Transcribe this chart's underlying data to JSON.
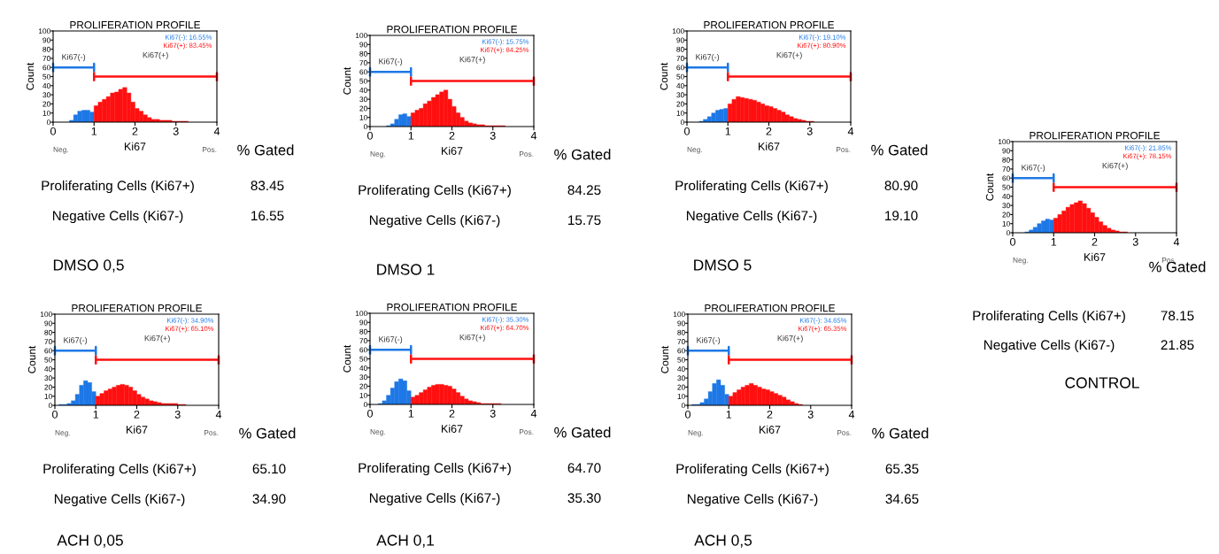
{
  "chart_data": [
    {
      "type": "histogram",
      "title": "PROLIFERATION PROFILE",
      "subtitle": "DMSO 0,5",
      "xlabel": "Ki67",
      "ylabel": "Count",
      "xlim": [
        0,
        4
      ],
      "ylim": [
        0,
        100
      ],
      "xticks": [
        0,
        1,
        2,
        3,
        4
      ],
      "yticks": [
        0,
        10,
        20,
        30,
        40,
        50,
        60,
        70,
        80,
        90,
        100
      ],
      "legend": "top right",
      "bins": [
        0,
        0.1,
        0.2,
        0.3,
        0.4,
        0.5,
        0.6,
        0.7,
        0.8,
        0.9,
        1.0,
        1.1,
        1.2,
        1.3,
        1.4,
        1.5,
        1.6,
        1.7,
        1.8,
        1.9,
        2.0,
        2.1,
        2.2,
        2.3,
        2.4,
        2.5,
        2.6,
        2.7,
        2.8,
        2.9,
        3.0,
        3.1,
        3.2,
        3.3,
        3.4,
        3.5
      ],
      "series": [
        {
          "name": "Ki67(-): 16.55%",
          "color": "#1e78e6",
          "values": [
            null,
            null,
            null,
            null,
            2,
            8,
            12,
            13,
            13,
            11,
            null,
            null,
            null,
            null,
            null,
            null,
            null,
            null,
            null,
            null,
            null,
            null,
            null,
            null,
            null,
            null,
            null,
            null,
            null,
            null,
            null,
            null,
            null,
            null,
            null
          ]
        },
        {
          "name": "Ki67(+): 83.45%",
          "color": "#ff1010",
          "values": [
            null,
            null,
            null,
            null,
            null,
            null,
            null,
            null,
            null,
            null,
            18,
            22,
            25,
            28,
            32,
            33,
            36,
            38,
            32,
            22,
            15,
            12,
            8,
            5,
            3,
            3,
            2,
            2,
            2,
            1,
            1,
            1,
            1,
            null,
            null
          ]
        },
        {
          "type": "line",
          "color": "#1e78e6",
          "x": [
            0,
            0,
            0,
            1,
            1,
            1
          ],
          "values": [
            56,
            64,
            60,
            60,
            64,
            56
          ]
        },
        {
          "type": "line",
          "color": "#ff1010",
          "x": [
            1,
            1,
            1,
            4,
            4,
            4
          ],
          "values": [
            46,
            54,
            50,
            50,
            54,
            46
          ]
        }
      ],
      "annotations": [
        "Ki67(-)",
        "Ki67(+)",
        "Neg.",
        "Pos.",
        "% Gated",
        "Proliferating Cells (Ki67+)",
        "83.45",
        "Negative Cells (Ki67-)",
        "16.55"
      ]
    },
    {
      "type": "histogram",
      "title": "PROLIFERATION PROFILE",
      "subtitle": "DMSO 1",
      "xlabel": "Ki67",
      "ylabel": "Count",
      "xlim": [
        0,
        4
      ],
      "ylim": [
        0,
        100
      ],
      "xticks": [
        0,
        1,
        2,
        3,
        4
      ],
      "yticks": [
        0,
        10,
        20,
        30,
        40,
        50,
        60,
        70,
        80,
        90,
        100
      ],
      "legend": "top right",
      "bins": [
        0,
        0.1,
        0.2,
        0.3,
        0.4,
        0.5,
        0.6,
        0.7,
        0.8,
        0.9,
        1.0,
        1.1,
        1.2,
        1.3,
        1.4,
        1.5,
        1.6,
        1.7,
        1.8,
        1.9,
        2.0,
        2.1,
        2.2,
        2.3,
        2.4,
        2.5,
        2.6,
        2.7,
        2.8,
        2.9,
        3.0,
        3.1,
        3.2,
        3.3,
        3.4,
        3.5
      ],
      "series": [
        {
          "name": "Ki67(-): 15.75%",
          "color": "#1e78e6",
          "values": [
            null,
            null,
            null,
            null,
            1,
            3,
            8,
            13,
            14,
            11,
            null,
            null,
            null,
            null,
            null,
            null,
            null,
            null,
            null,
            null,
            null,
            null,
            null,
            null,
            null,
            null,
            null,
            null,
            null,
            null,
            null,
            null,
            null,
            null,
            null
          ]
        },
        {
          "name": "Ki67(+): 84.25%",
          "color": "#ff1010",
          "values": [
            null,
            null,
            null,
            null,
            null,
            null,
            null,
            null,
            null,
            null,
            15,
            18,
            20,
            25,
            28,
            32,
            35,
            38,
            40,
            30,
            22,
            15,
            10,
            6,
            4,
            3,
            2,
            2,
            1,
            1,
            1,
            1,
            1,
            null,
            null
          ]
        },
        {
          "type": "line",
          "color": "#1e78e6",
          "x": [
            0,
            0,
            0,
            1,
            1,
            1
          ],
          "values": [
            56,
            64,
            60,
            60,
            64,
            56
          ]
        },
        {
          "type": "line",
          "color": "#ff1010",
          "x": [
            1,
            1,
            1,
            4,
            4,
            4
          ],
          "values": [
            46,
            54,
            50,
            50,
            54,
            46
          ]
        }
      ],
      "annotations": [
        "Ki67(-)",
        "Ki67(+)",
        "Neg.",
        "Pos.",
        "% Gated",
        "Proliferating Cells (Ki67+)",
        "84.25",
        "Negative Cells (Ki67-)",
        "15.75"
      ]
    },
    {
      "type": "histogram",
      "title": "PROLIFERATION PROFILE",
      "subtitle": "DMSO 5",
      "xlabel": "Ki67",
      "ylabel": "Count",
      "xlim": [
        0,
        4
      ],
      "ylim": [
        0,
        100
      ],
      "xticks": [
        0,
        1,
        2,
        3,
        4
      ],
      "yticks": [
        0,
        10,
        20,
        30,
        40,
        50,
        60,
        70,
        80,
        90,
        100
      ],
      "legend": "top right",
      "bins": [
        0,
        0.1,
        0.2,
        0.3,
        0.4,
        0.5,
        0.6,
        0.7,
        0.8,
        0.9,
        1.0,
        1.1,
        1.2,
        1.3,
        1.4,
        1.5,
        1.6,
        1.7,
        1.8,
        1.9,
        2.0,
        2.1,
        2.2,
        2.3,
        2.4,
        2.5,
        2.6,
        2.7,
        2.8,
        2.9,
        3.0,
        3.1,
        3.2,
        3.3,
        3.4,
        3.5
      ],
      "series": [
        {
          "name": "Ki67(-): 19.10%",
          "color": "#1e78e6",
          "values": [
            null,
            null,
            null,
            1,
            3,
            6,
            10,
            13,
            14,
            15,
            null,
            null,
            null,
            null,
            null,
            null,
            null,
            null,
            null,
            null,
            null,
            null,
            null,
            null,
            null,
            null,
            null,
            null,
            null,
            null,
            null,
            null,
            null,
            null,
            null
          ]
        },
        {
          "name": "Ki67(+): 80.90%",
          "color": "#ff1010",
          "values": [
            null,
            null,
            null,
            null,
            null,
            null,
            null,
            null,
            null,
            null,
            20,
            25,
            28,
            27,
            26,
            25,
            24,
            22,
            20,
            18,
            17,
            15,
            13,
            11,
            8,
            6,
            4,
            3,
            2,
            1,
            1,
            null,
            null,
            null,
            null
          ]
        },
        {
          "type": "line",
          "color": "#1e78e6",
          "x": [
            0,
            0,
            0,
            1,
            1,
            1
          ],
          "values": [
            56,
            64,
            60,
            60,
            64,
            56
          ]
        },
        {
          "type": "line",
          "color": "#ff1010",
          "x": [
            1,
            1,
            1,
            4,
            4,
            4
          ],
          "values": [
            46,
            54,
            50,
            50,
            54,
            46
          ]
        }
      ],
      "annotations": [
        "Ki67(-)",
        "Ki67(+)",
        "Neg.",
        "Pos.",
        "% Gated",
        "Proliferating Cells (Ki67+)",
        "80.90",
        "Negative Cells (Ki67-)",
        "19.10"
      ]
    },
    {
      "type": "histogram",
      "title": "PROLIFERATION PROFILE",
      "subtitle": "CONTROL",
      "xlabel": "Ki67",
      "ylabel": "Count",
      "xlim": [
        0,
        4
      ],
      "ylim": [
        0,
        100
      ],
      "xticks": [
        0,
        1,
        2,
        3,
        4
      ],
      "yticks": [
        0,
        10,
        20,
        30,
        40,
        50,
        60,
        70,
        80,
        90,
        100
      ],
      "legend": "top right",
      "bins": [
        0,
        0.1,
        0.2,
        0.3,
        0.4,
        0.5,
        0.6,
        0.7,
        0.8,
        0.9,
        1.0,
        1.1,
        1.2,
        1.3,
        1.4,
        1.5,
        1.6,
        1.7,
        1.8,
        1.9,
        2.0,
        2.1,
        2.2,
        2.3,
        2.4,
        2.5,
        2.6,
        2.7,
        2.8,
        2.9,
        3.0,
        3.1,
        3.2,
        3.3,
        3.4,
        3.5
      ],
      "series": [
        {
          "name": "Ki67(-): 21.85%",
          "color": "#1e78e6",
          "values": [
            null,
            null,
            null,
            1,
            3,
            6,
            10,
            13,
            15,
            14,
            null,
            null,
            null,
            null,
            null,
            null,
            null,
            null,
            null,
            null,
            null,
            null,
            null,
            null,
            null,
            null,
            null,
            null,
            null,
            null,
            null,
            null,
            null,
            null,
            null
          ]
        },
        {
          "name": "Ki67(+): 78.15%",
          "color": "#ff1010",
          "values": [
            null,
            null,
            null,
            null,
            null,
            null,
            null,
            null,
            null,
            null,
            16,
            20,
            24,
            28,
            31,
            33,
            35,
            32,
            27,
            22,
            17,
            12,
            8,
            5,
            3,
            2,
            1,
            1,
            null,
            null,
            null,
            null,
            null,
            null,
            null
          ]
        },
        {
          "type": "line",
          "color": "#1e78e6",
          "x": [
            0,
            0,
            0,
            1,
            1,
            1
          ],
          "values": [
            56,
            64,
            60,
            60,
            64,
            56
          ]
        },
        {
          "type": "line",
          "color": "#ff1010",
          "x": [
            1,
            1,
            1,
            4,
            4,
            4
          ],
          "values": [
            46,
            54,
            50,
            50,
            54,
            46
          ]
        }
      ],
      "annotations": [
        "Ki67(-)",
        "Ki67(+)",
        "Neg.",
        "Pos.",
        "% Gated",
        "Proliferating Cells (Ki67+)",
        "78.15",
        "Negative Cells (Ki67-)",
        "21.85"
      ]
    },
    {
      "type": "histogram",
      "title": "PROLIFERATION PROFILE",
      "subtitle": "ACH 0,05",
      "xlabel": "Ki67",
      "ylabel": "Count",
      "xlim": [
        0,
        4
      ],
      "ylim": [
        0,
        100
      ],
      "xticks": [
        0,
        1,
        2,
        3,
        4
      ],
      "yticks": [
        0,
        10,
        20,
        30,
        40,
        50,
        60,
        70,
        80,
        90,
        100
      ],
      "legend": "top right",
      "bins": [
        0,
        0.1,
        0.2,
        0.3,
        0.4,
        0.5,
        0.6,
        0.7,
        0.8,
        0.9,
        1.0,
        1.1,
        1.2,
        1.3,
        1.4,
        1.5,
        1.6,
        1.7,
        1.8,
        1.9,
        2.0,
        2.1,
        2.2,
        2.3,
        2.4,
        2.5,
        2.6,
        2.7,
        2.8,
        2.9,
        3.0,
        3.1,
        3.2,
        3.3,
        3.4,
        3.5
      ],
      "series": [
        {
          "name": "Ki67(-): 34.90%",
          "color": "#1e78e6",
          "values": [
            null,
            1,
            1,
            2,
            5,
            12,
            22,
            27,
            25,
            15,
            null,
            null,
            null,
            null,
            null,
            null,
            null,
            null,
            null,
            null,
            null,
            null,
            null,
            null,
            null,
            null,
            null,
            null,
            null,
            null,
            null,
            null,
            null,
            null,
            null
          ]
        },
        {
          "name": "Ki67(+): 65.10%",
          "color": "#ff1010",
          "values": [
            null,
            null,
            null,
            null,
            null,
            null,
            null,
            null,
            null,
            null,
            10,
            13,
            16,
            18,
            20,
            22,
            23,
            22,
            20,
            16,
            12,
            9,
            7,
            5,
            4,
            3,
            2,
            2,
            2,
            2,
            1,
            1,
            null,
            null,
            null
          ]
        },
        {
          "type": "line",
          "color": "#1e78e6",
          "x": [
            0,
            0,
            0,
            1,
            1,
            1
          ],
          "values": [
            56,
            64,
            60,
            60,
            64,
            56
          ]
        },
        {
          "type": "line",
          "color": "#ff1010",
          "x": [
            1,
            1,
            1,
            4,
            4,
            4
          ],
          "values": [
            46,
            54,
            50,
            50,
            54,
            46
          ]
        }
      ],
      "annotations": [
        "Ki67(-)",
        "Ki67(+)",
        "Neg.",
        "Pos.",
        "% Gated",
        "Proliferating Cells (Ki67+)",
        "65.10",
        "Negative Cells (Ki67-)",
        "34.90"
      ]
    },
    {
      "type": "histogram",
      "title": "PROLIFERATION PROFILE",
      "subtitle": "ACH 0,1",
      "xlabel": "Ki67",
      "ylabel": "Count",
      "xlim": [
        0,
        4
      ],
      "ylim": [
        0,
        100
      ],
      "xticks": [
        0,
        1,
        2,
        3,
        4
      ],
      "yticks": [
        0,
        10,
        20,
        30,
        40,
        50,
        60,
        70,
        80,
        90,
        100
      ],
      "legend": "top right",
      "bins": [
        0,
        0.1,
        0.2,
        0.3,
        0.4,
        0.5,
        0.6,
        0.7,
        0.8,
        0.9,
        1.0,
        1.1,
        1.2,
        1.3,
        1.4,
        1.5,
        1.6,
        1.7,
        1.8,
        1.9,
        2.0,
        2.1,
        2.2,
        2.3,
        2.4,
        2.5,
        2.6,
        2.7,
        2.8,
        2.9,
        3.0,
        3.1,
        3.2,
        3.3,
        3.4,
        3.5
      ],
      "series": [
        {
          "name": "Ki67(-): 35.30%",
          "color": "#1e78e6",
          "values": [
            null,
            null,
            1,
            4,
            10,
            18,
            25,
            28,
            26,
            15,
            null,
            null,
            null,
            null,
            null,
            null,
            null,
            null,
            null,
            null,
            null,
            null,
            null,
            null,
            null,
            null,
            null,
            null,
            null,
            null,
            null,
            null,
            null,
            null,
            null
          ]
        },
        {
          "name": "Ki67(+): 64.70%",
          "color": "#ff1010",
          "values": [
            null,
            null,
            null,
            null,
            null,
            null,
            null,
            null,
            null,
            null,
            8,
            10,
            13,
            16,
            19,
            21,
            22,
            22,
            21,
            20,
            17,
            13,
            9,
            6,
            4,
            3,
            2,
            1,
            1,
            1,
            1,
            1,
            null,
            null,
            null
          ]
        },
        {
          "type": "line",
          "color": "#1e78e6",
          "x": [
            0,
            0,
            0,
            1,
            1,
            1
          ],
          "values": [
            56,
            64,
            60,
            60,
            64,
            56
          ]
        },
        {
          "type": "line",
          "color": "#ff1010",
          "x": [
            1,
            1,
            1,
            4,
            4,
            4
          ],
          "values": [
            46,
            54,
            50,
            50,
            54,
            46
          ]
        }
      ],
      "annotations": [
        "Ki67(-)",
        "Ki67(+)",
        "Neg.",
        "Pos.",
        "% Gated",
        "Proliferating Cells (Ki67+)",
        "64.70",
        "Negative Cells (Ki67-)",
        "35.30"
      ]
    },
    {
      "type": "histogram",
      "title": "PROLIFERATION PROFILE",
      "subtitle": "ACH 0,5",
      "xlabel": "Ki67",
      "ylabel": "Count",
      "xlim": [
        0,
        4
      ],
      "ylim": [
        0,
        100
      ],
      "xticks": [
        0,
        1,
        2,
        3,
        4
      ],
      "yticks": [
        0,
        10,
        20,
        30,
        40,
        50,
        60,
        70,
        80,
        90,
        100
      ],
      "legend": "top right",
      "bins": [
        0,
        0.1,
        0.2,
        0.3,
        0.4,
        0.5,
        0.6,
        0.7,
        0.8,
        0.9,
        1.0,
        1.1,
        1.2,
        1.3,
        1.4,
        1.5,
        1.6,
        1.7,
        1.8,
        1.9,
        2.0,
        2.1,
        2.2,
        2.3,
        2.4,
        2.5,
        2.6,
        2.7,
        2.8,
        2.9,
        3.0,
        3.1,
        3.2,
        3.3,
        3.4,
        3.5
      ],
      "series": [
        {
          "name": "Ki67(-): 34.65%",
          "color": "#1e78e6",
          "values": [
            null,
            1,
            1,
            3,
            7,
            15,
            24,
            28,
            22,
            12,
            null,
            null,
            null,
            null,
            null,
            null,
            null,
            null,
            null,
            null,
            null,
            null,
            null,
            null,
            null,
            null,
            null,
            null,
            null,
            null,
            null,
            null,
            null,
            null,
            null
          ]
        },
        {
          "name": "Ki67(+): 65.35%",
          "color": "#ff1010",
          "values": [
            null,
            null,
            null,
            null,
            null,
            null,
            null,
            null,
            null,
            null,
            10,
            14,
            17,
            20,
            22,
            24,
            22,
            20,
            18,
            17,
            15,
            13,
            11,
            9,
            6,
            4,
            2,
            1,
            null,
            null,
            null,
            null,
            null,
            null,
            null
          ]
        },
        {
          "type": "line",
          "color": "#1e78e6",
          "x": [
            0,
            0,
            0,
            1,
            1,
            1
          ],
          "values": [
            56,
            64,
            60,
            60,
            64,
            56
          ]
        },
        {
          "type": "line",
          "color": "#ff1010",
          "x": [
            1,
            1,
            1,
            4,
            4,
            4
          ],
          "values": [
            46,
            54,
            50,
            50,
            54,
            46
          ]
        }
      ],
      "annotations": [
        "Ki67(-)",
        "Ki67(+)",
        "Neg.",
        "Pos.",
        "% Gated",
        "Proliferating Cells (Ki67+)",
        "65.35",
        "Negative Cells (Ki67-)",
        "34.65"
      ]
    }
  ]
}
